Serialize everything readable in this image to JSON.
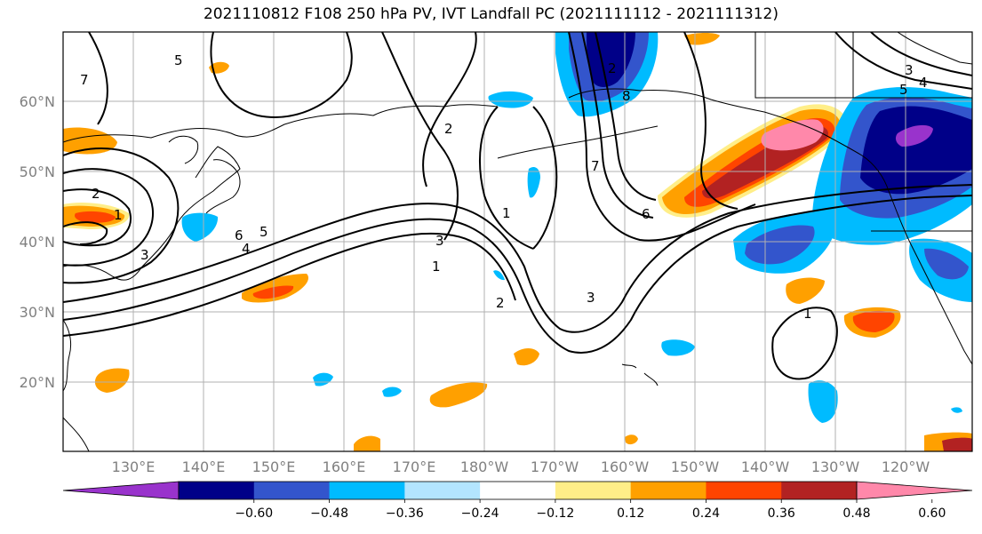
{
  "title": "2021110812 F108 250 hPa PV, IVT Landfall PC (2021111112 - 2021111312)",
  "map": {
    "lat_labels": [
      "60°N",
      "50°N",
      "40°N",
      "30°N",
      "20°N"
    ],
    "lon_labels": [
      "130°E",
      "140°E",
      "150°E",
      "160°E",
      "170°E",
      "180°W",
      "170°W",
      "160°W",
      "150°W",
      "140°W",
      "130°W",
      "120°W"
    ],
    "contour_labels": [
      "5",
      "7",
      "2",
      "1",
      "3",
      "6",
      "5",
      "4",
      "2",
      "1",
      "3",
      "1",
      "2",
      "3",
      "7",
      "8",
      "6",
      "5",
      "4",
      "3",
      "2",
      "1"
    ],
    "colors": {
      "land_outline": "#000000",
      "grid": "#b0b0b0"
    }
  },
  "colorbar": {
    "ticks": [
      "−0.60",
      "−0.48",
      "−0.36",
      "−0.24",
      "−0.12",
      "0.12",
      "0.24",
      "0.36",
      "0.48",
      "0.60"
    ],
    "colors": [
      "#9933cc",
      "#000088",
      "#3355cc",
      "#00bbff",
      "#b3e5ff",
      "#ffffff",
      "#ffee88",
      "#ffa000",
      "#ff4400",
      "#b22222",
      "#ff88aa"
    ]
  }
}
